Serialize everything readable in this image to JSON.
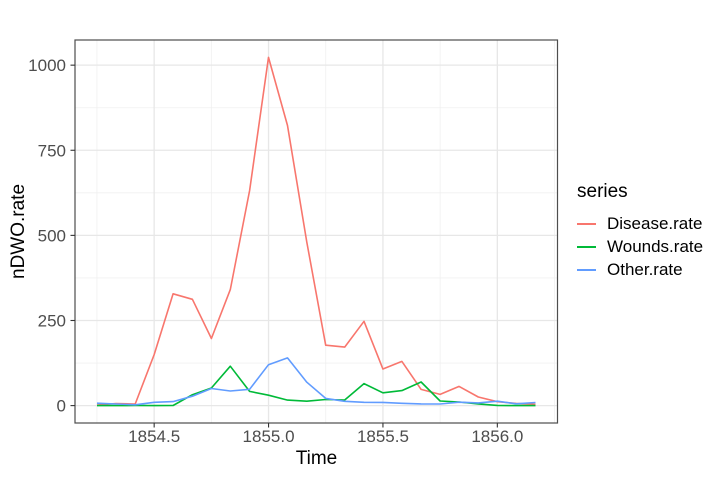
{
  "chart_data": {
    "type": "line",
    "title": "",
    "xlabel": "Time",
    "ylabel": "nDWO.rate",
    "legend_title": "series",
    "legend_position": "right",
    "grid": true,
    "xlim": [
      1854.154,
      1856.263
    ],
    "ylim": [
      -51.1,
      1073.9
    ],
    "x_ticks": [
      1854.5,
      1855.0,
      1855.5,
      1856.0
    ],
    "x_tick_labels": [
      "1854.5",
      "1855.0",
      "1855.5",
      "1856.0"
    ],
    "x_minor_ticks": [
      1854.25,
      1854.75,
      1855.25,
      1855.75,
      1856.25
    ],
    "y_ticks": [
      0,
      250,
      500,
      750,
      1000
    ],
    "y_tick_labels": [
      "0",
      "250",
      "500",
      "750",
      "1000"
    ],
    "y_minor_ticks": [
      125,
      375,
      625,
      875
    ],
    "x": [
      1854.25,
      1854.333,
      1854.417,
      1854.5,
      1854.583,
      1854.667,
      1854.75,
      1854.833,
      1854.917,
      1855.0,
      1855.083,
      1855.167,
      1855.25,
      1855.333,
      1855.417,
      1855.5,
      1855.583,
      1855.667,
      1855.75,
      1855.833,
      1855.917,
      1856.0,
      1856.083,
      1856.167
    ],
    "series": [
      {
        "name": "Disease.rate",
        "color": "#F8766D",
        "values": [
          1.4,
          6.2,
          4.7,
          150.0,
          328.5,
          312.2,
          197.0,
          340.6,
          631.5,
          1022.8,
          822.8,
          480.3,
          177.5,
          171.8,
          247.6,
          107.5,
          129.9,
          47.5,
          32.8,
          56.4,
          25.3,
          11.4,
          6.6,
          3.9
        ]
      },
      {
        "name": "Wounds.rate",
        "color": "#00BA38",
        "values": [
          0.0,
          0.0,
          0.3,
          0.0,
          0.4,
          32.1,
          51.7,
          115.8,
          41.7,
          30.7,
          16.3,
          12.8,
          17.9,
          16.6,
          64.5,
          37.7,
          44.1,
          69.4,
          13.6,
          10.5,
          5.0,
          0.5,
          0.0,
          0.0
        ]
      },
      {
        "name": "Other.rate",
        "color": "#619CFF",
        "values": [
          7.0,
          4.6,
          2.5,
          9.6,
          11.9,
          27.7,
          50.1,
          42.8,
          48.0,
          120.0,
          140.1,
          68.6,
          21.2,
          12.5,
          9.6,
          9.3,
          6.7,
          5.0,
          4.6,
          10.1,
          7.8,
          13.0,
          5.2,
          9.1
        ]
      }
    ],
    "colors": {
      "background": "#FFFFFF",
      "panel_background": "#FFFFFF",
      "panel_border": "#4D4D4D",
      "grid_major": "#E7E7E7",
      "grid_minor": "#F0F0F0",
      "tick_mark": "#333333",
      "tick_text": "#4D4D4D",
      "title_text": "#000000"
    }
  }
}
